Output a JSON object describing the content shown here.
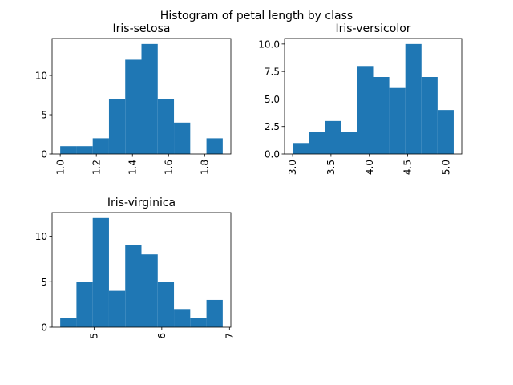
{
  "chart_data": {
    "type": "bar",
    "title": "Histogram of petal length by class",
    "bar_color": "#1f77b4",
    "panels": [
      {
        "name": "Iris-setosa",
        "bins": [
          1.0,
          1.09,
          1.18,
          1.27,
          1.36,
          1.45,
          1.54,
          1.63,
          1.72,
          1.81,
          1.9
        ],
        "counts": [
          1,
          1,
          2,
          7,
          12,
          14,
          7,
          4,
          0,
          2
        ],
        "xlim": [
          0.955,
          1.945
        ],
        "ylim": [
          0,
          14.7
        ],
        "xticks": [
          1.0,
          1.2,
          1.4,
          1.6,
          1.8
        ],
        "xtick_labels": [
          "1.0",
          "1.2",
          "1.4",
          "1.6",
          "1.8"
        ],
        "yticks": [
          0,
          5,
          10
        ],
        "ytick_labels": [
          "0",
          "5",
          "10"
        ]
      },
      {
        "name": "Iris-versicolor",
        "bins": [
          3.0,
          3.21,
          3.42,
          3.63,
          3.84,
          4.05,
          4.26,
          4.47,
          4.68,
          4.89,
          5.1
        ],
        "counts": [
          1,
          2,
          3,
          2,
          8,
          7,
          6,
          10,
          7,
          4
        ],
        "xlim": [
          2.895,
          5.205
        ],
        "ylim": [
          0,
          10.5
        ],
        "xticks": [
          3.0,
          3.5,
          4.0,
          4.5,
          5.0
        ],
        "xtick_labels": [
          "3.0",
          "3.5",
          "4.0",
          "4.5",
          "5.0"
        ],
        "yticks": [
          0,
          2.5,
          5,
          7.5,
          10
        ],
        "ytick_labels": [
          "0.0",
          "2.5",
          "5.0",
          "7.5",
          "10.0"
        ]
      },
      {
        "name": "Iris-virginica",
        "bins": [
          4.5,
          4.74,
          4.98,
          5.22,
          5.46,
          5.7,
          5.94,
          6.18,
          6.42,
          6.66,
          6.9
        ],
        "counts": [
          1,
          5,
          12,
          4,
          9,
          8,
          5,
          2,
          1,
          3
        ],
        "xlim": [
          4.38,
          7.02
        ],
        "ylim": [
          0,
          12.6
        ],
        "xticks": [
          5,
          6,
          7
        ],
        "xtick_labels": [
          "5",
          "6",
          "7"
        ],
        "yticks": [
          0,
          5,
          10
        ],
        "ytick_labels": [
          "0",
          "5",
          "10"
        ]
      }
    ]
  }
}
